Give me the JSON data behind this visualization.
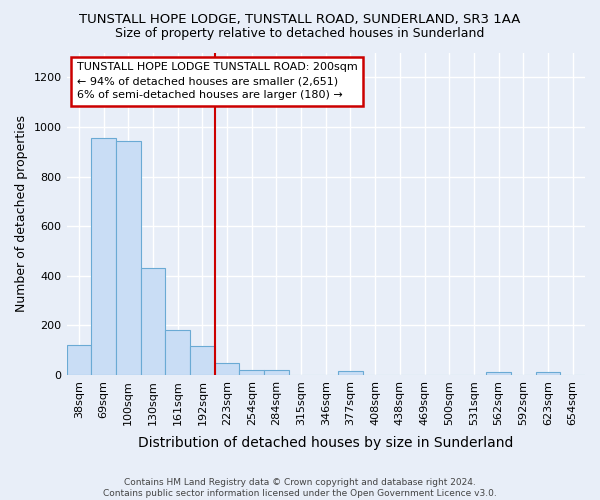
{
  "title": "TUNSTALL HOPE LODGE, TUNSTALL ROAD, SUNDERLAND, SR3 1AA",
  "subtitle": "Size of property relative to detached houses in Sunderland",
  "xlabel": "Distribution of detached houses by size in Sunderland",
  "ylabel": "Number of detached properties",
  "footer": "Contains HM Land Registry data © Crown copyright and database right 2024.\nContains public sector information licensed under the Open Government Licence v3.0.",
  "categories": [
    "38sqm",
    "69sqm",
    "100sqm",
    "130sqm",
    "161sqm",
    "192sqm",
    "223sqm",
    "254sqm",
    "284sqm",
    "315sqm",
    "346sqm",
    "377sqm",
    "408sqm",
    "438sqm",
    "469sqm",
    "500sqm",
    "531sqm",
    "562sqm",
    "592sqm",
    "623sqm",
    "654sqm"
  ],
  "values": [
    120,
    955,
    945,
    430,
    183,
    115,
    50,
    20,
    20,
    0,
    0,
    15,
    0,
    0,
    0,
    0,
    0,
    10,
    0,
    10,
    0
  ],
  "bar_color": "#c9ddf5",
  "bar_edge_color": "#6aaad4",
  "marker_at_index": 5,
  "marker_color": "#cc0000",
  "annotation_text": "TUNSTALL HOPE LODGE TUNSTALL ROAD: 200sqm\n← 94% of detached houses are smaller (2,651)\n6% of semi-detached houses are larger (180) →",
  "annotation_box_facecolor": "#ffffff",
  "annotation_box_edgecolor": "#cc0000",
  "ylim": [
    0,
    1300
  ],
  "yticks": [
    0,
    200,
    400,
    600,
    800,
    1000,
    1200
  ],
  "bg_color": "#e8eef8",
  "grid_color": "#ffffff",
  "title_fontsize": 9.5,
  "subtitle_fontsize": 9,
  "ylabel_fontsize": 9,
  "xlabel_fontsize": 10,
  "tick_fontsize": 8,
  "footer_fontsize": 6.5
}
